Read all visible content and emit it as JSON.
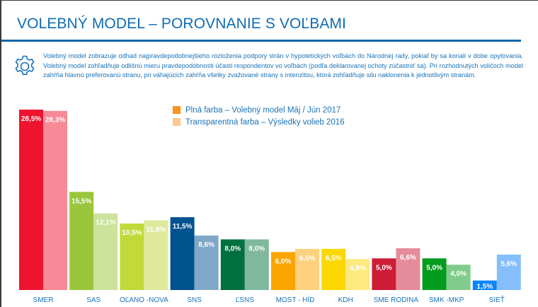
{
  "header": {
    "title": "VOLEBNÝ MODEL – POROVNANIE S VOĽBAMI"
  },
  "description": {
    "icon": "gear-icon",
    "text": "Volebný model zobrazuje odhad najpravdepodobnejšieho rozloženia podpory strán v hypotetických voľbách do Národnej rady, pokiaľ by sa konali v dobe opytovania. Volebný model zohľadňuje odlišnú mieru pravdepodobnosti účasti respondentov vo voľbách (podľa deklarovanej ochoty zúčastniť sa). Pri rozhodnutých voličoch model zahŕňa hlavnú preferovanú stranu, pri váhajúcich zahŕňa všetky zvažované strany s intenzitou, ktorá zohľadňuje silu naklonenia k jednotlivým stranám."
  },
  "legend": [
    {
      "label": "Plná farba – Volebný model Máj / Jún 2017",
      "color": "#f7931e"
    },
    {
      "label": "Transparentná farba – Výsledky volieb 2016",
      "color": "#fcc98f"
    }
  ],
  "chart_data": {
    "type": "bar",
    "title": "VOLEBNÝ MODEL – POROVNANIE S VOĽBAMI",
    "xlabel": "",
    "ylabel": "",
    "ylim": [
      0,
      30
    ],
    "grid": false,
    "legend_position": "top-center",
    "categories": [
      "SMER",
      "SAS",
      "OĽANO -NOVA",
      "SNS",
      "ĽSNS",
      "MOST - HÍD",
      "KDH",
      "SME RODINA",
      "SMK -MKP",
      "SIEŤ"
    ],
    "series": [
      {
        "name": "Plná farba – Volebný model Máj / Jún 2017",
        "values": [
          28.5,
          15.5,
          10.5,
          11.5,
          8.0,
          6.0,
          6.5,
          5.0,
          5.0,
          1.5
        ],
        "labels": [
          "28,5%",
          "15,5%",
          "10,5%",
          "11,5%",
          "8,0%",
          "6,0%",
          "6,5%",
          "5,0%",
          "5,0%",
          "1,5%"
        ],
        "colors": [
          "#ee1430",
          "#99c63a",
          "#c1d939",
          "#00538f",
          "#007040",
          "#fca400",
          "#fcd700",
          "#cd1d37",
          "#039b1c",
          "#0a84fb"
        ]
      },
      {
        "name": "Transparentná farba – Výsledky volieb 2016",
        "values": [
          28.3,
          12.1,
          11.0,
          8.6,
          8.0,
          6.5,
          4.9,
          6.6,
          4.0,
          5.6
        ],
        "labels": [
          "28,3%",
          "12,1%",
          "11,0%",
          "8,6%",
          "8,0%",
          "6,5%",
          "4,9%",
          "6,6%",
          "4,0%",
          "5,6%"
        ],
        "colors": [
          "#f78a96",
          "#cce39b",
          "#dfe99c",
          "#7fa8c8",
          "#80b89e",
          "#fdd17f",
          "#fde97f",
          "#e68b99",
          "#81cc8d",
          "#84bffc"
        ]
      }
    ]
  }
}
